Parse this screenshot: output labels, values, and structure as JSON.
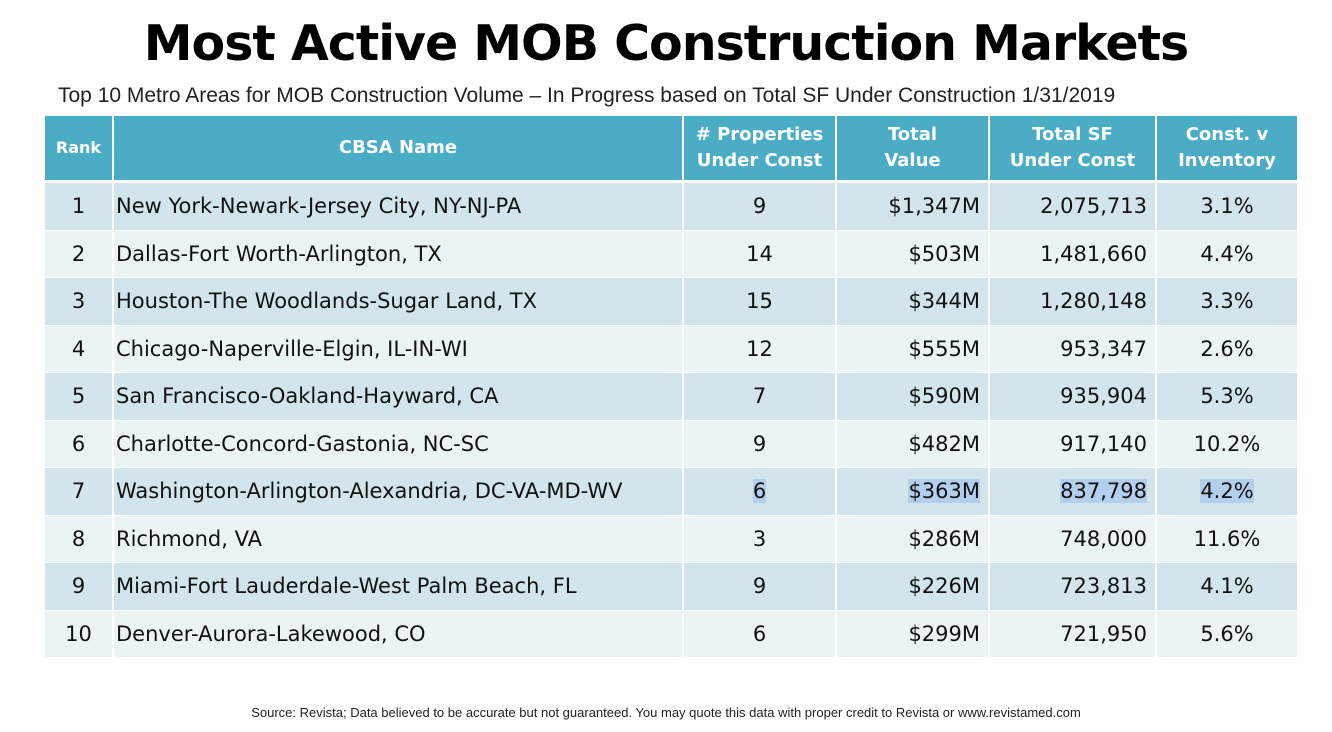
{
  "title": "Most Active MOB Construction Markets",
  "subtitle": "Top 10 Metro Areas for MOB Construction Volume – In Progress based on Total SF Under Construction 1/31/2019",
  "colors": {
    "header_bg": "#4bacc6",
    "row_odd": "#d2e5ec",
    "row_even": "#eaf3f6",
    "highlight": "#b4cfee"
  },
  "chart_data": {
    "type": "table",
    "columns": [
      [
        "Rank"
      ],
      [
        "CBSA Name"
      ],
      [
        "# Properties",
        "Under Const"
      ],
      [
        "Total",
        "Value"
      ],
      [
        "Total SF",
        "Under Const"
      ],
      [
        "Const. v",
        "Inventory"
      ]
    ],
    "rows": [
      {
        "rank": "1",
        "name": "New York-Newark-Jersey City, NY-NJ-PA",
        "properties": "9",
        "value": "$1,347M",
        "sf": "2,075,713",
        "pct": "3.1%"
      },
      {
        "rank": "2",
        "name": "Dallas-Fort Worth-Arlington, TX",
        "properties": "14",
        "value": "$503M",
        "sf": "1,481,660",
        "pct": "4.4%"
      },
      {
        "rank": "3",
        "name": "Houston-The Woodlands-Sugar Land, TX",
        "properties": "15",
        "value": "$344M",
        "sf": "1,280,148",
        "pct": "3.3%"
      },
      {
        "rank": "4",
        "name": "Chicago-Naperville-Elgin, IL-IN-WI",
        "properties": "12",
        "value": "$555M",
        "sf": "953,347",
        "pct": "2.6%"
      },
      {
        "rank": "5",
        "name": "San Francisco-Oakland-Hayward, CA",
        "properties": "7",
        "value": "$590M",
        "sf": "935,904",
        "pct": "5.3%"
      },
      {
        "rank": "6",
        "name": "Charlotte-Concord-Gastonia, NC-SC",
        "properties": "9",
        "value": "$482M",
        "sf": "917,140",
        "pct": "10.2%"
      },
      {
        "rank": "7",
        "name": "Washington-Arlington-Alexandria, DC-VA-MD-WV",
        "properties": "6",
        "value": "$363M",
        "sf": "837,798",
        "pct": "4.2%",
        "highlighted": true
      },
      {
        "rank": "8",
        "name": "Richmond, VA",
        "properties": "3",
        "value": "$286M",
        "sf": "748,000",
        "pct": "11.6%"
      },
      {
        "rank": "9",
        "name": "Miami-Fort Lauderdale-West Palm Beach, FL",
        "properties": "9",
        "value": "$226M",
        "sf": "723,813",
        "pct": "4.1%"
      },
      {
        "rank": "10",
        "name": "Denver-Aurora-Lakewood, CO",
        "properties": "6",
        "value": "$299M",
        "sf": "721,950",
        "pct": "5.6%"
      }
    ]
  },
  "source": "Source:  Revista; Data believed to be accurate but not guaranteed.  You may quote this data with proper credit to Revista or www.revistamed.com"
}
